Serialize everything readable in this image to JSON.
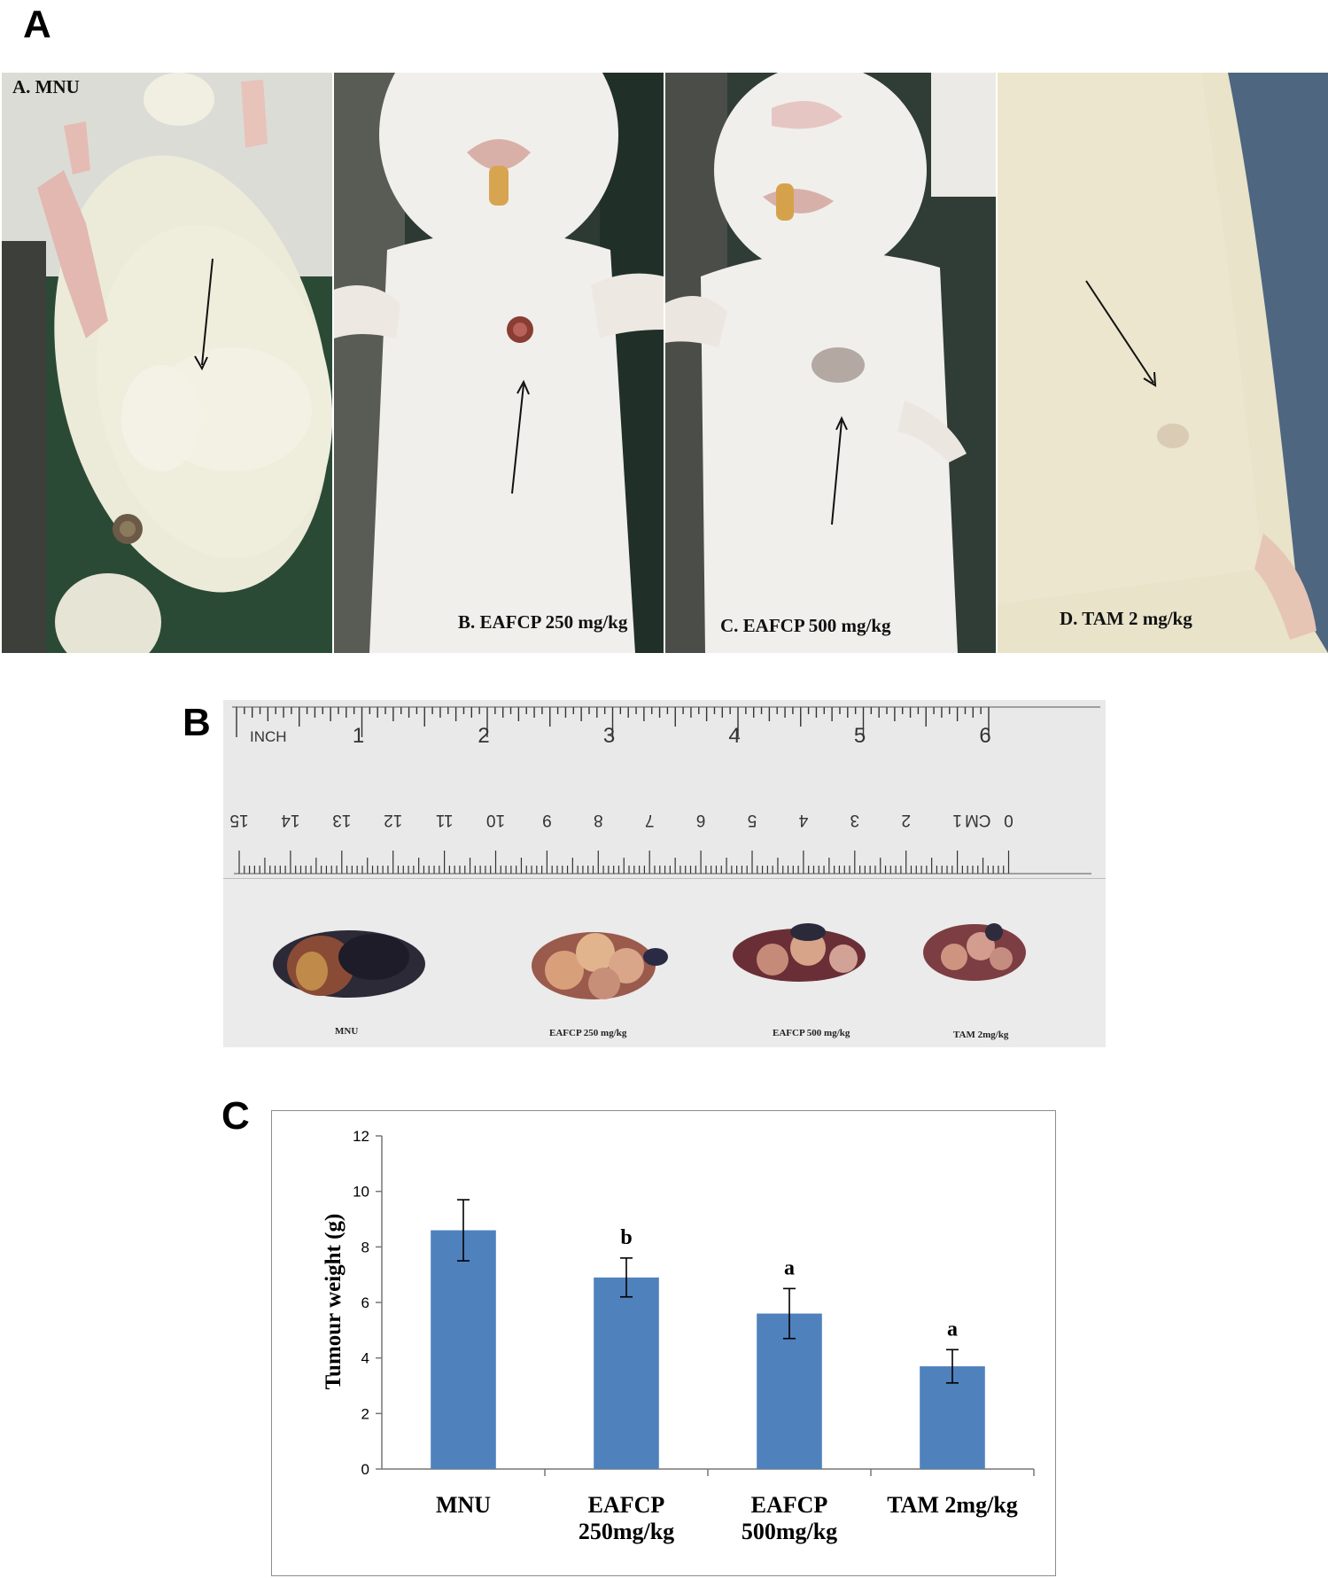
{
  "panels": {
    "a": {
      "letter": "A"
    },
    "b": {
      "letter": "B"
    },
    "c": {
      "letter": "C"
    }
  },
  "photos": [
    {
      "label": "A. MNU",
      "bg": "#2b4a36",
      "body": "#ecebd9"
    },
    {
      "label": "B. EAFCP 250 mg/kg",
      "bg": "#2d3a33",
      "body": "#f1efeb"
    },
    {
      "label": "C. EAFCP 500 mg/kg",
      "bg": "#2f3d36",
      "body": "#f0efec"
    },
    {
      "label": "D. TAM 2 mg/kg",
      "bg": "#4f6680",
      "body": "#e8e3c9"
    }
  ],
  "ruler": {
    "inch_label": "INCH",
    "inch_numbers": [
      "1",
      "2",
      "3",
      "4",
      "5",
      "6"
    ],
    "cm_label": "CM",
    "cm_numbers": [
      "15",
      "14",
      "13",
      "12",
      "11",
      "10",
      "9",
      "8",
      "7",
      "6",
      "5",
      "4",
      "3",
      "2",
      "1",
      "0"
    ]
  },
  "tumours": [
    {
      "label": "MNU"
    },
    {
      "label": "EAFCP 250 mg/kg"
    },
    {
      "label": "EAFCP 500 mg/kg"
    },
    {
      "label": "TAM 2mg/kg"
    }
  ],
  "chart_data": {
    "type": "bar",
    "categories": [
      "MNU",
      "EAFCP 250mg/kg",
      "EAFCP 500mg/kg",
      "TAM 2mg/kg"
    ],
    "category_lines": [
      [
        "MNU"
      ],
      [
        "EAFCP",
        "250mg/kg"
      ],
      [
        "EAFCP",
        "500mg/kg"
      ],
      [
        "TAM 2mg/kg"
      ]
    ],
    "values": [
      8.6,
      6.9,
      5.6,
      3.7
    ],
    "errors": [
      1.1,
      0.7,
      0.9,
      0.6
    ],
    "significance": [
      "",
      "b",
      "a",
      "a"
    ],
    "ylabel": "Tumour weight (g)",
    "ylim": [
      0,
      12
    ],
    "yticks": [
      "0",
      "2",
      "4",
      "6",
      "8",
      "10",
      "12"
    ],
    "bar_color": "#4f81bd",
    "grid": false,
    "legend": "none"
  }
}
